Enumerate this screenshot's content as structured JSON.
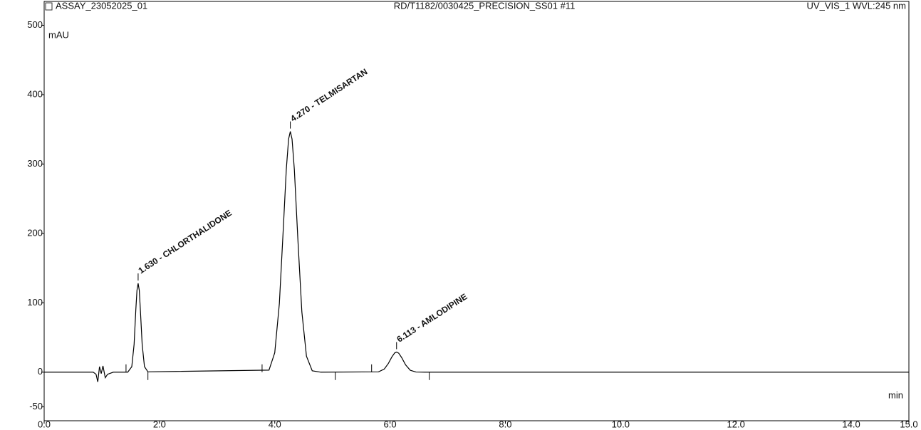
{
  "chart_data": {
    "type": "line",
    "header_left": "ASSAY_23052025_01",
    "header_center": "RD/T1182/0030425_PRECISION_SS01 #11",
    "header_right": "UV_VIS_1 WVL:245 nm",
    "ylabel": "mAU",
    "xlabel": "min",
    "color": "#000000",
    "xlim": [
      0,
      15
    ],
    "ylim": [
      -70,
      520
    ],
    "xticks": [
      {
        "value": 0,
        "label": "0.0"
      },
      {
        "value": 2,
        "label": "2.0"
      },
      {
        "value": 4,
        "label": "4.0"
      },
      {
        "value": 6,
        "label": "6.0"
      },
      {
        "value": 8,
        "label": "8.0"
      },
      {
        "value": 10,
        "label": "10.0"
      },
      {
        "value": 12,
        "label": "12.0"
      },
      {
        "value": 14,
        "label": "14.0"
      },
      {
        "value": 15,
        "label": "15.0"
      }
    ],
    "yticks": [
      -50,
      0,
      100,
      200,
      300,
      400,
      500
    ],
    "x": [
      0,
      0.85,
      0.9,
      0.93,
      0.96,
      0.99,
      1.02,
      1.06,
      1.1,
      1.2,
      1.45,
      1.52,
      1.56,
      1.59,
      1.61,
      1.63,
      1.65,
      1.67,
      1.7,
      1.74,
      1.8,
      3.9,
      4.0,
      4.08,
      4.15,
      4.2,
      4.24,
      4.27,
      4.3,
      4.34,
      4.4,
      4.47,
      4.55,
      4.65,
      4.8,
      5.8,
      5.9,
      5.97,
      6.03,
      6.08,
      6.113,
      6.15,
      6.2,
      6.27,
      6.35,
      6.45,
      6.6,
      15
    ],
    "values": [
      0,
      0,
      -3,
      -14,
      8,
      -2,
      9,
      -8,
      -3,
      0,
      0,
      8,
      40,
      90,
      118,
      128,
      118,
      88,
      40,
      8,
      0.5,
      3,
      28,
      99,
      210,
      292,
      336,
      347,
      336,
      292,
      193,
      87,
      23,
      2,
      0,
      0.5,
      4.5,
      12.5,
      21.8,
      27.7,
      29,
      27.4,
      21.2,
      10.5,
      2.8,
      0.2,
      0,
      0
    ],
    "peak_delimiters": [
      1.42,
      1.8,
      3.78,
      5.05,
      5.68,
      6.68
    ],
    "peaks": [
      {
        "label": "1.630 - CHLORTHALIDONE",
        "time": 1.63,
        "height": 128
      },
      {
        "label": "4.270 - TELMISARTAN",
        "time": 4.27,
        "height": 347
      },
      {
        "label": "6.113 - AMLODIPINE",
        "time": 6.113,
        "height": 29
      }
    ]
  }
}
